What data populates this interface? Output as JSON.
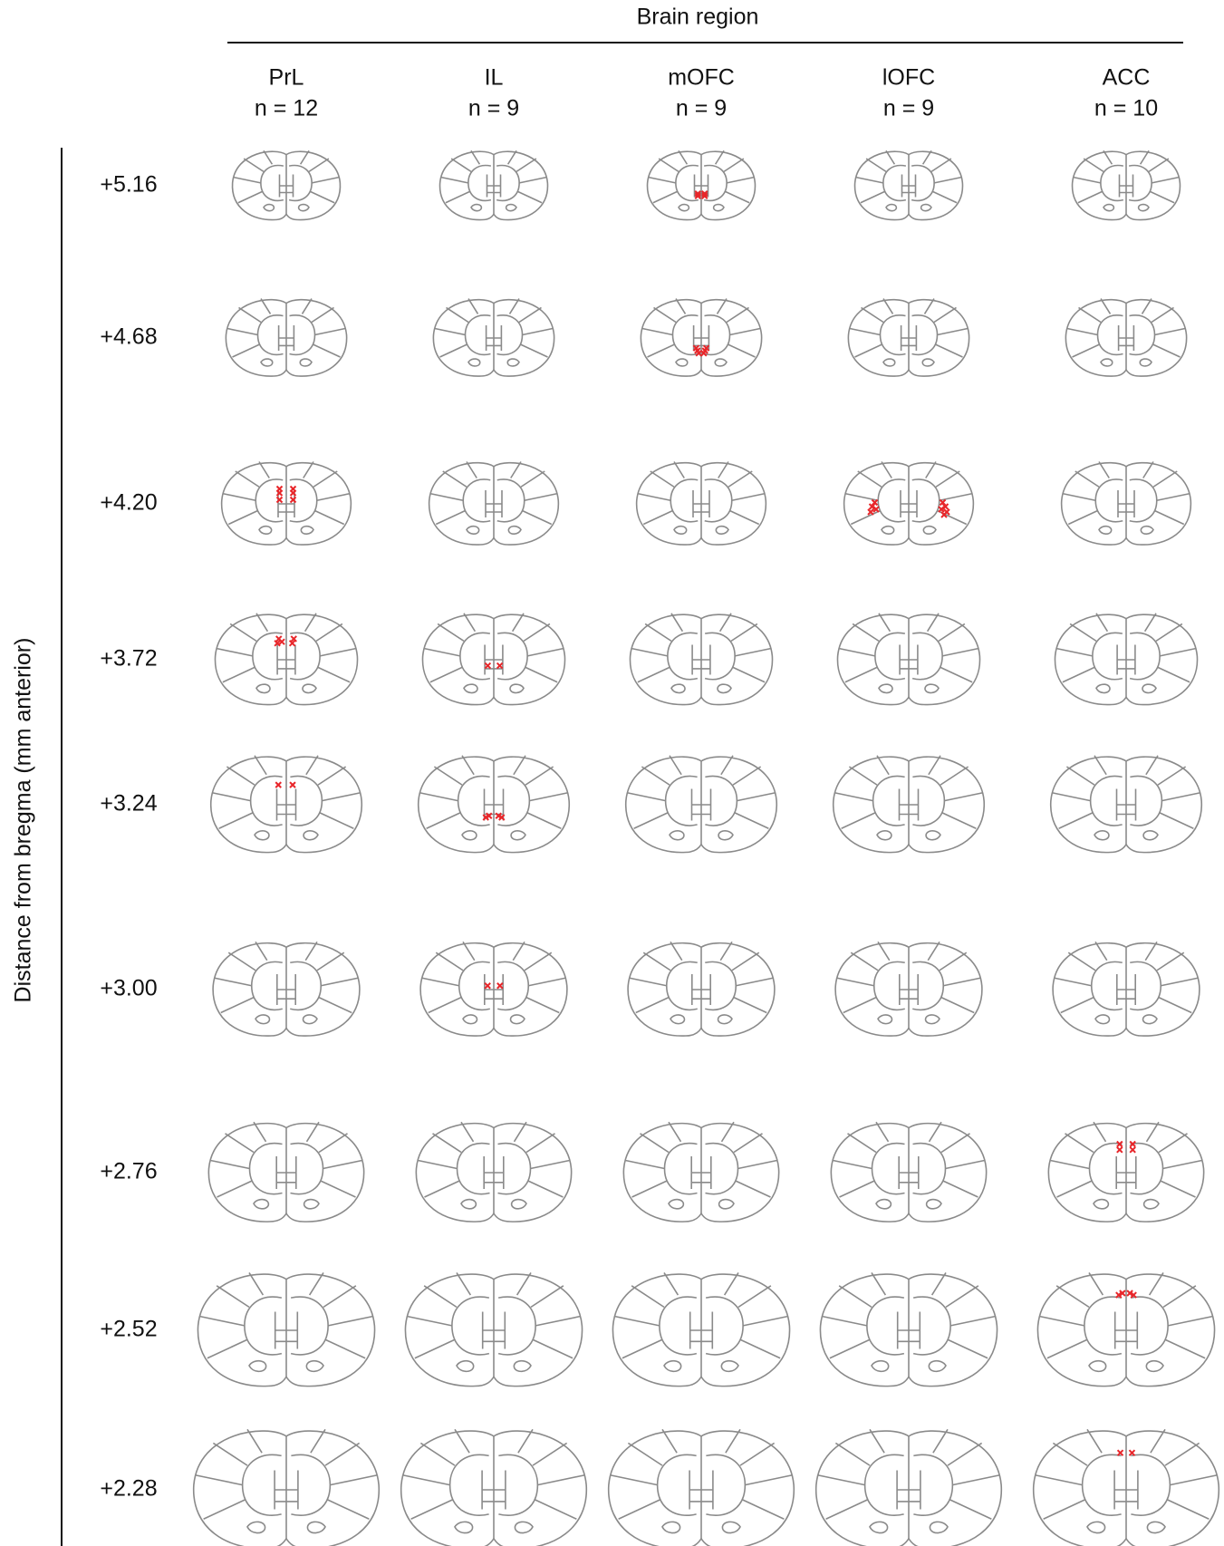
{
  "header": {
    "title": "Brain region"
  },
  "columns": [
    {
      "region": "PrL",
      "n": "n = 12"
    },
    {
      "region": "IL",
      "n": "n = 9"
    },
    {
      "region": "mOFC",
      "n": "n = 9"
    },
    {
      "region": "lOFC",
      "n": "n = 9"
    },
    {
      "region": "ACC",
      "n": "n = 10"
    }
  ],
  "rows": [
    "+5.16",
    "+4.68",
    "+4.20",
    "+3.72",
    "+3.24",
    "+3.00",
    "+2.76",
    "+2.52",
    "+2.28"
  ],
  "y_axis_label": "Distance from bregma (mm anterior)"
}
